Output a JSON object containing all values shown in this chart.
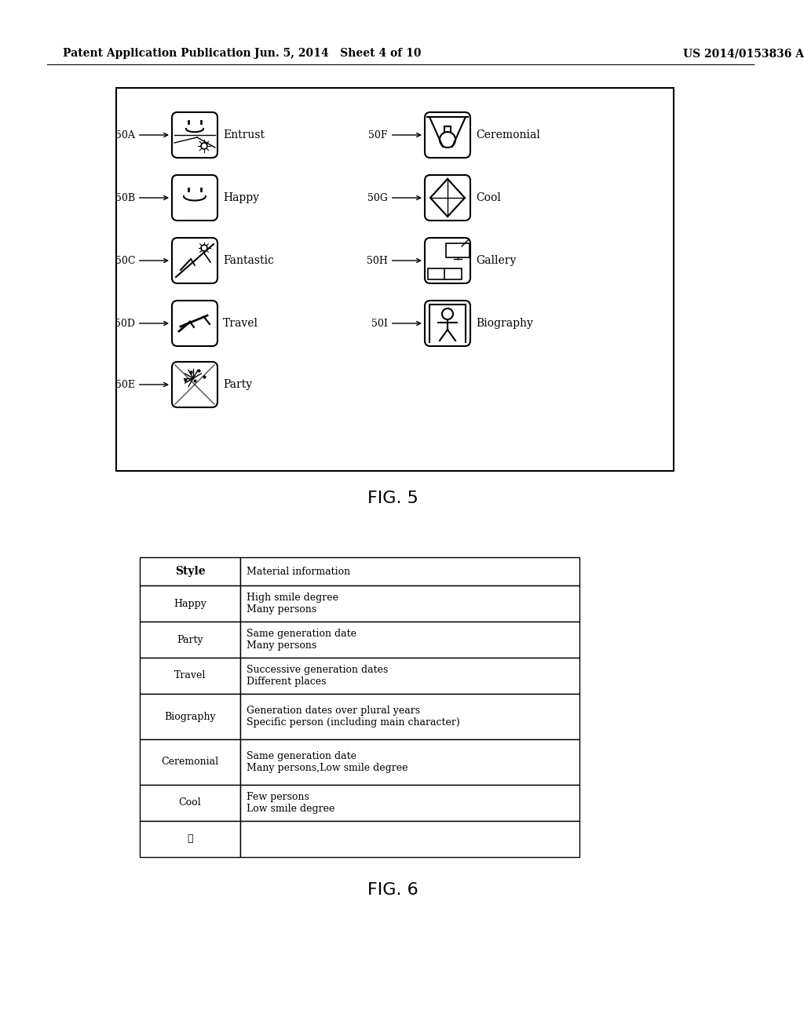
{
  "header_left": "Patent Application Publication",
  "header_mid": "Jun. 5, 2014   Sheet 4 of 10",
  "header_right": "US 2014/0153836 A1",
  "fig5_title": "FIG. 5",
  "fig6_title": "FIG. 6",
  "fig5_items_left": [
    {
      "label": "50A",
      "name": "Entrust"
    },
    {
      "label": "50B",
      "name": "Happy"
    },
    {
      "label": "50C",
      "name": "Fantastic"
    },
    {
      "label": "50D",
      "name": "Travel"
    },
    {
      "label": "50E",
      "name": "Party"
    }
  ],
  "fig5_items_right": [
    {
      "label": "50F",
      "name": "Ceremonial"
    },
    {
      "label": "50G",
      "name": "Cool"
    },
    {
      "label": "50H",
      "name": "Gallery"
    },
    {
      "label": "50I",
      "name": "Biography"
    }
  ],
  "table_headers": [
    "Style",
    "Material information"
  ],
  "table_rows": [
    [
      "Happy",
      "High smile degree\nMany persons"
    ],
    [
      "Party",
      "Same generation date\nMany persons"
    ],
    [
      "Travel",
      "Successive generation dates\nDifferent places"
    ],
    [
      "Biography",
      "Generation dates over plural years\nSpecific person (including main character)"
    ],
    [
      "Ceremonial",
      "Same generation date\nMany persons,Low smile degree"
    ],
    [
      "Cool",
      "Few persons\nLow smile degree"
    ],
    [
      "⋮",
      ""
    ]
  ],
  "bg_color": "#ffffff",
  "text_color": "#000000",
  "header_fontsize": 10,
  "label_fontsize": 9,
  "name_fontsize": 10,
  "table_fontsize": 9,
  "fig_title_fontsize": 16
}
